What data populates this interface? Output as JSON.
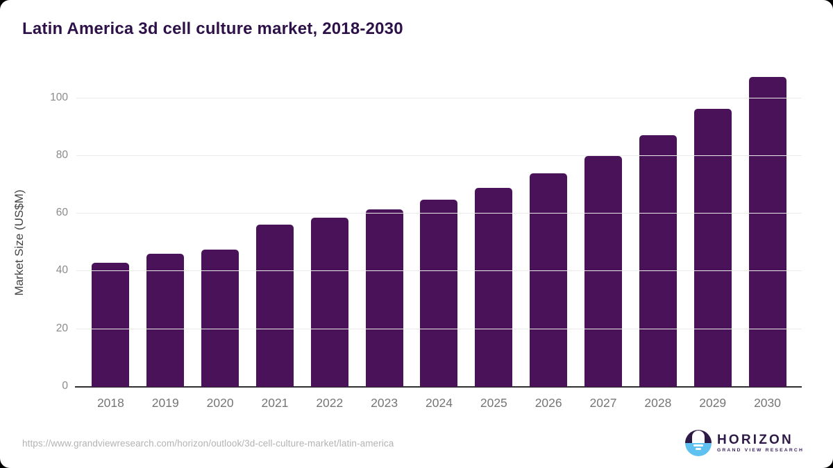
{
  "header": {
    "title": "Latin America 3d cell culture market, 2018-2030"
  },
  "footer": {
    "source_url": "https://www.grandviewresearch.com/horizon/outlook/3d-cell-culture-market/latin-america",
    "logo_name": "HORIZON",
    "logo_subtitle": "GRAND VIEW RESEARCH"
  },
  "colors": {
    "bar": "#491259",
    "title": "#2d1148",
    "gridline": "#eaeaea",
    "axis_line": "#2f2f2f",
    "y_tick_label": "#8a8a8a",
    "x_tick_label": "#757575",
    "source_url": "#b3b3b3",
    "logo_purple": "#2e1a47",
    "logo_blue": "#5ec1f0"
  },
  "chart_data": {
    "type": "bar",
    "title": "Latin America 3d cell culture market, 2018-2030",
    "categories": [
      "2018",
      "2019",
      "2020",
      "2021",
      "2022",
      "2023",
      "2024",
      "2025",
      "2026",
      "2027",
      "2028",
      "2029",
      "2030"
    ],
    "values": [
      43.0,
      46.1,
      47.5,
      56.1,
      58.6,
      61.5,
      64.8,
      69.0,
      73.9,
      79.9,
      87.3,
      96.2,
      107.4
    ],
    "xlabel": "",
    "ylabel": "Market Size (US$M)",
    "ylim": [
      0,
      110
    ],
    "yticks": [
      0,
      20,
      40,
      60,
      80,
      100
    ],
    "grid": true,
    "legend": false,
    "bar_color": "#491259"
  }
}
